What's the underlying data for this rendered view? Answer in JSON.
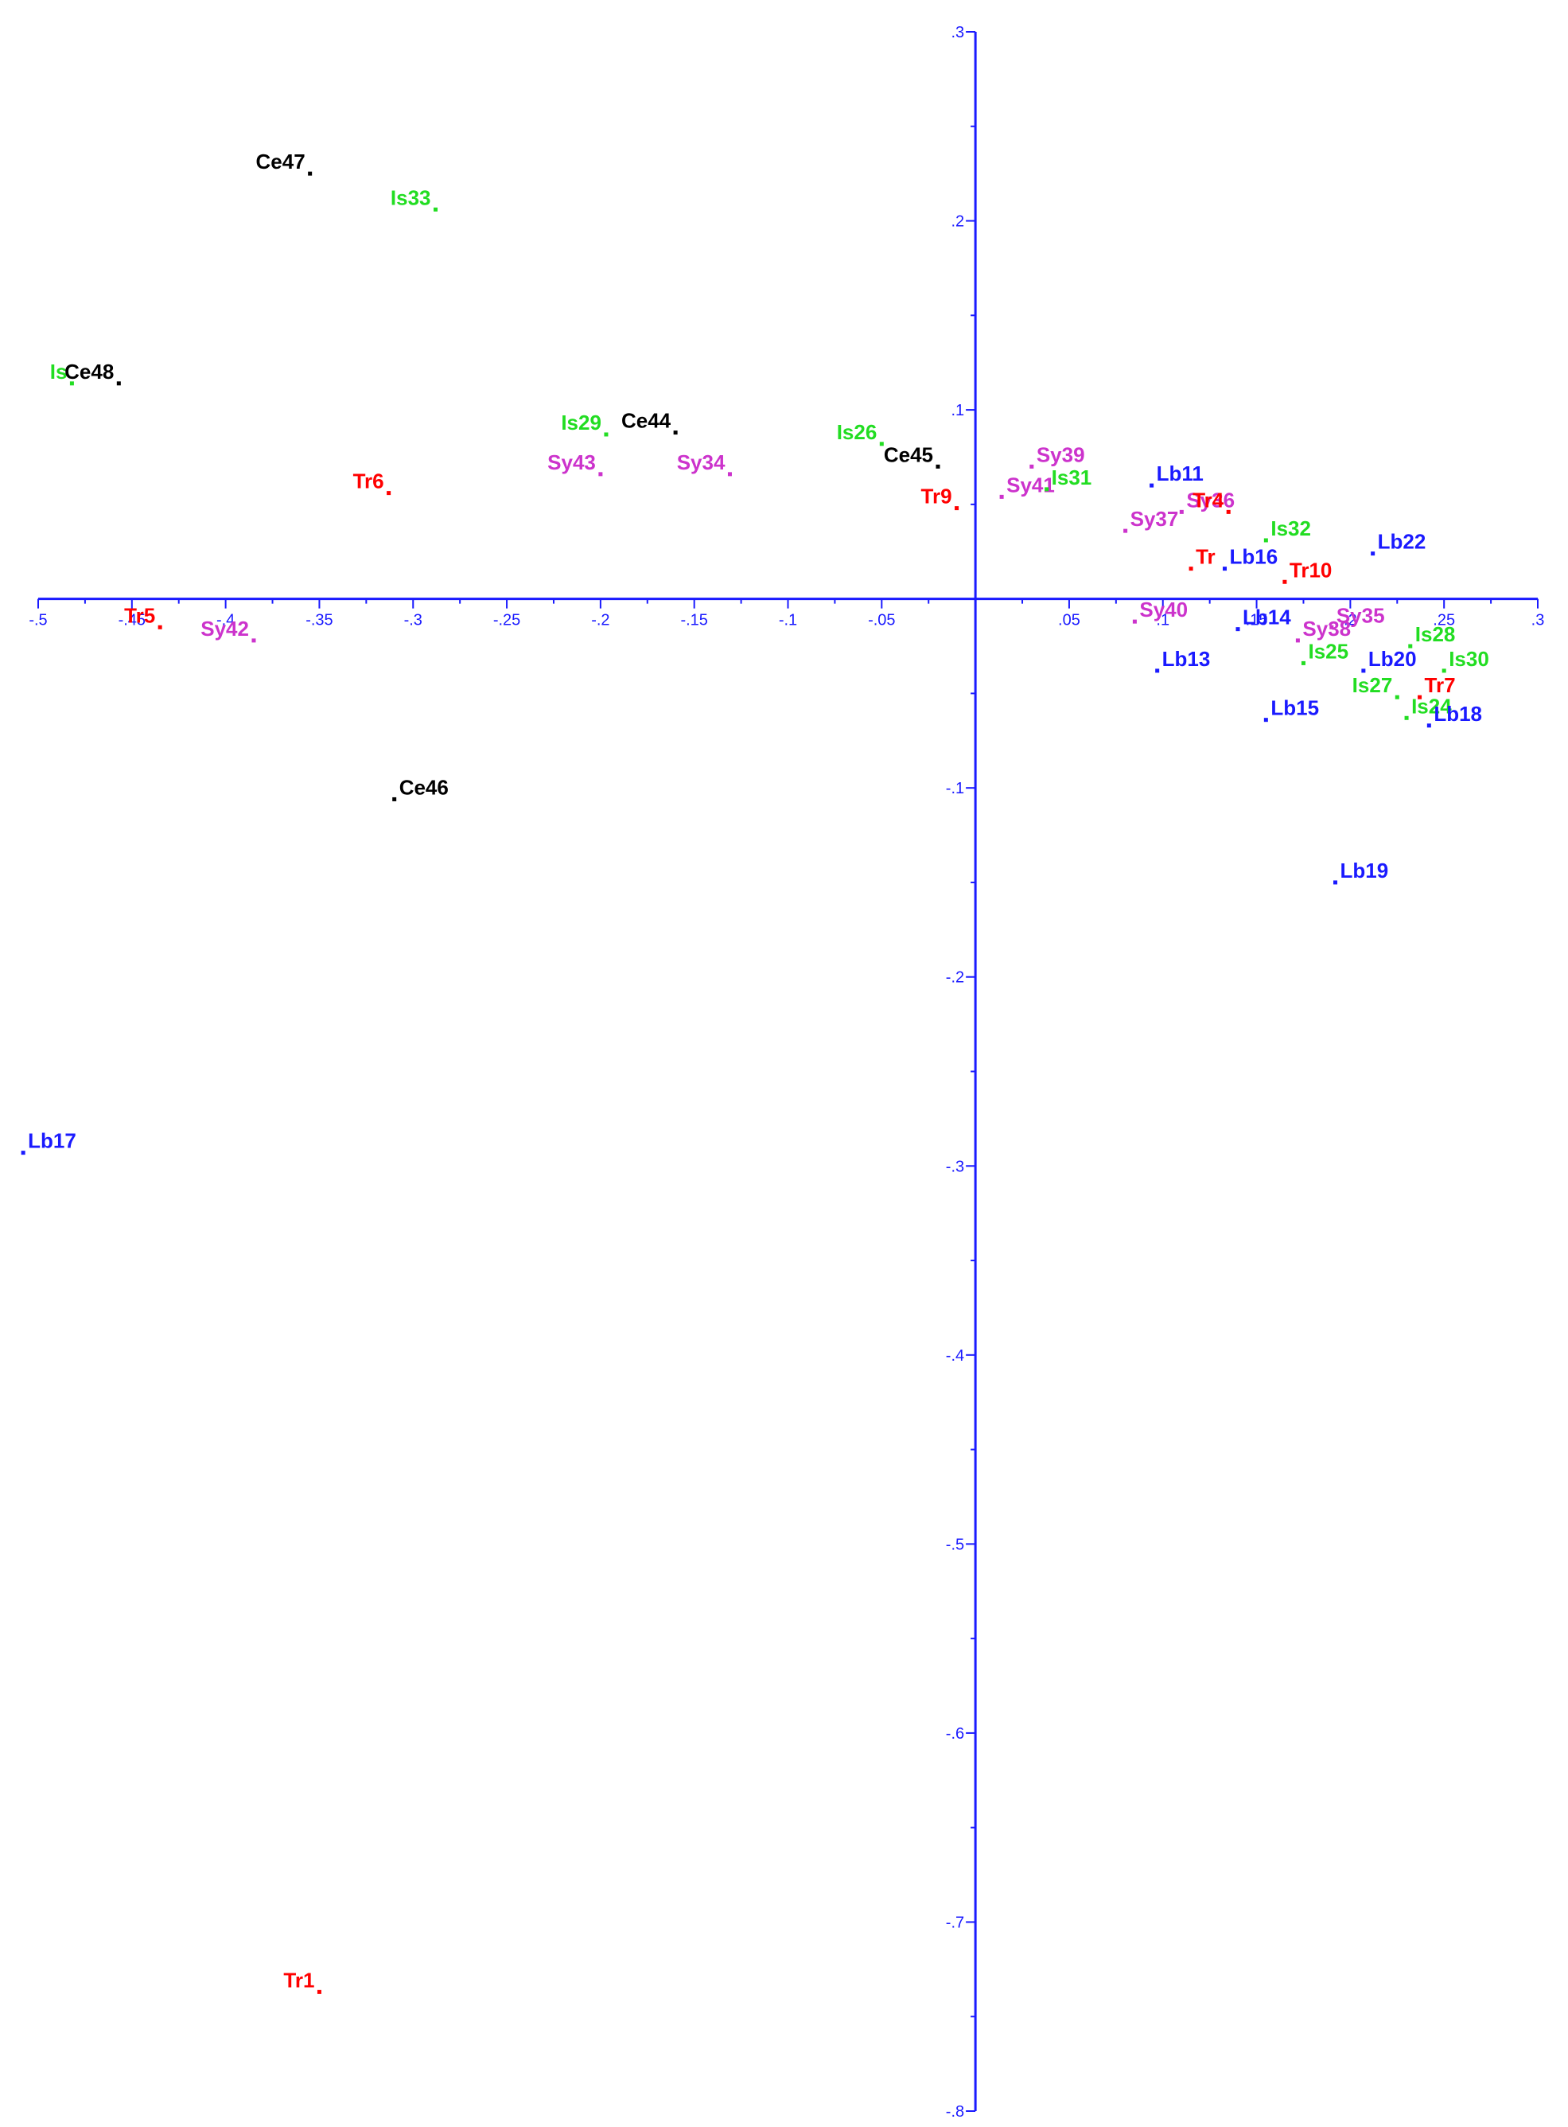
{
  "chart_data": {
    "type": "scatter",
    "title": "",
    "xlabel": "",
    "ylabel": "",
    "xlim": [
      -0.5,
      0.3
    ],
    "ylim": [
      -0.8,
      0.3
    ],
    "x_ticks": [
      {
        "value": -0.5,
        "label": "-.5"
      },
      {
        "value": -0.45,
        "label": "-.45"
      },
      {
        "value": -0.4,
        "label": "-.4"
      },
      {
        "value": -0.35,
        "label": "-.35"
      },
      {
        "value": -0.3,
        "label": "-.3"
      },
      {
        "value": -0.25,
        "label": "-.25"
      },
      {
        "value": -0.2,
        "label": "-.2"
      },
      {
        "value": -0.15,
        "label": "-.15"
      },
      {
        "value": -0.1,
        "label": "-.1"
      },
      {
        "value": -0.05,
        "label": "-.05"
      },
      {
        "value": 0.05,
        "label": ".05"
      },
      {
        "value": 0.1,
        "label": ".1"
      },
      {
        "value": 0.15,
        "label": ".15"
      },
      {
        "value": 0.2,
        "label": ".2"
      },
      {
        "value": 0.25,
        "label": ".25"
      },
      {
        "value": 0.3,
        "label": ".3"
      }
    ],
    "y_ticks": [
      {
        "value": 0.3,
        "label": ".3"
      },
      {
        "value": 0.2,
        "label": ".2"
      },
      {
        "value": 0.1,
        "label": ".1"
      },
      {
        "value": -0.1,
        "label": "-.1"
      },
      {
        "value": -0.2,
        "label": "-.2"
      },
      {
        "value": -0.3,
        "label": "-.3"
      },
      {
        "value": -0.4,
        "label": "-.4"
      },
      {
        "value": -0.5,
        "label": "-.5"
      },
      {
        "value": -0.6,
        "label": "-.6"
      },
      {
        "value": -0.7,
        "label": "-.7"
      },
      {
        "value": -0.8,
        "label": "-.8"
      }
    ],
    "grid": false,
    "legend": "none",
    "colors": {
      "axis": "#1a1aff",
      "Ce": "#000000",
      "Is": "#22dd22",
      "Tr": "#ff0000",
      "Sy": "#cc33cc",
      "Lb": "#1a1aff"
    },
    "points": [
      {
        "label": "Ce47",
        "group": "Ce",
        "x": -0.355,
        "y": 0.225,
        "label_side": "left"
      },
      {
        "label": "Is33",
        "group": "Is",
        "x": -0.288,
        "y": 0.206,
        "label_side": "left"
      },
      {
        "label": "Is",
        "group": "Is",
        "x": -0.482,
        "y": 0.114,
        "label_side": "left"
      },
      {
        "label": "Ce48",
        "group": "Ce",
        "x": -0.457,
        "y": 0.114,
        "label_side": "left"
      },
      {
        "label": "Tr6",
        "group": "Tr",
        "x": -0.313,
        "y": 0.056,
        "label_side": "left"
      },
      {
        "label": "Is29",
        "group": "Is",
        "x": -0.197,
        "y": 0.087,
        "label_side": "left"
      },
      {
        "label": "Ce44",
        "group": "Ce",
        "x": -0.16,
        "y": 0.088,
        "label_side": "left"
      },
      {
        "label": "Sy43",
        "group": "Sy",
        "x": -0.2,
        "y": 0.066,
        "label_side": "left"
      },
      {
        "label": "Sy34",
        "group": "Sy",
        "x": -0.131,
        "y": 0.066,
        "label_side": "left"
      },
      {
        "label": "Is26",
        "group": "Is",
        "x": -0.05,
        "y": 0.082,
        "label_side": "left"
      },
      {
        "label": "Ce45",
        "group": "Ce",
        "x": -0.02,
        "y": 0.07,
        "label_side": "left"
      },
      {
        "label": "Tr9",
        "group": "Tr",
        "x": -0.01,
        "y": 0.048,
        "label_side": "left"
      },
      {
        "label": "Sy39",
        "group": "Sy",
        "x": 0.03,
        "y": 0.07,
        "label_side": "right"
      },
      {
        "label": "Sy41",
        "group": "Sy",
        "x": 0.014,
        "y": 0.054,
        "label_side": "right"
      },
      {
        "label": "Is31",
        "group": "Is",
        "x": 0.038,
        "y": 0.058,
        "label_side": "right"
      },
      {
        "label": "Lb11",
        "group": "Lb",
        "x": 0.094,
        "y": 0.06,
        "label_side": "right"
      },
      {
        "label": "Sy37",
        "group": "Sy",
        "x": 0.08,
        "y": 0.036,
        "label_side": "right"
      },
      {
        "label": "Sy36",
        "group": "Sy",
        "x": 0.11,
        "y": 0.046,
        "label_side": "right"
      },
      {
        "label": "Tr4",
        "group": "Tr",
        "x": 0.135,
        "y": 0.046,
        "label_side": "left"
      },
      {
        "label": "Is32",
        "group": "Is",
        "x": 0.155,
        "y": 0.031,
        "label_side": "right"
      },
      {
        "label": "Tr",
        "group": "Tr",
        "x": 0.115,
        "y": 0.016,
        "label_side": "right"
      },
      {
        "label": "Lb16",
        "group": "Lb",
        "x": 0.133,
        "y": 0.016,
        "label_side": "right"
      },
      {
        "label": "Tr10",
        "group": "Tr",
        "x": 0.165,
        "y": 0.009,
        "label_side": "right"
      },
      {
        "label": "Lb22",
        "group": "Lb",
        "x": 0.212,
        "y": 0.024,
        "label_side": "right"
      },
      {
        "label": "Tr5",
        "group": "Tr",
        "x": -0.435,
        "y": -0.015,
        "label_side": "left"
      },
      {
        "label": "Sy42",
        "group": "Sy",
        "x": -0.385,
        "y": -0.022,
        "label_side": "left"
      },
      {
        "label": "Sy40",
        "group": "Sy",
        "x": 0.085,
        "y": -0.012,
        "label_side": "right"
      },
      {
        "label": "Lb14",
        "group": "Lb",
        "x": 0.14,
        "y": -0.016,
        "label_side": "right"
      },
      {
        "label": "Sy38",
        "group": "Sy",
        "x": 0.172,
        "y": -0.022,
        "label_side": "right"
      },
      {
        "label": "Is25",
        "group": "Is",
        "x": 0.175,
        "y": -0.034,
        "label_side": "right"
      },
      {
        "label": "Sy35",
        "group": "Sy",
        "x": 0.19,
        "y": -0.015,
        "label_side": "right"
      },
      {
        "label": "Is28",
        "group": "Is",
        "x": 0.232,
        "y": -0.025,
        "label_side": "right"
      },
      {
        "label": "Lb20",
        "group": "Lb",
        "x": 0.207,
        "y": -0.038,
        "label_side": "right"
      },
      {
        "label": "Is27",
        "group": "Is",
        "x": 0.225,
        "y": -0.052,
        "label_side": "left"
      },
      {
        "label": "Is30",
        "group": "Is",
        "x": 0.25,
        "y": -0.038,
        "label_side": "right"
      },
      {
        "label": "Tr7",
        "group": "Tr",
        "x": 0.237,
        "y": -0.052,
        "label_side": "right"
      },
      {
        "label": "Is24",
        "group": "Is",
        "x": 0.23,
        "y": -0.063,
        "label_side": "right"
      },
      {
        "label": "Lb18",
        "group": "Lb",
        "x": 0.242,
        "y": -0.067,
        "label_side": "right"
      },
      {
        "label": "Lb13",
        "group": "Lb",
        "x": 0.097,
        "y": -0.038,
        "label_side": "right"
      },
      {
        "label": "Lb15",
        "group": "Lb",
        "x": 0.155,
        "y": -0.064,
        "label_side": "right"
      },
      {
        "label": "Ce46",
        "group": "Ce",
        "x": -0.31,
        "y": -0.106,
        "label_side": "right"
      },
      {
        "label": "Lb19",
        "group": "Lb",
        "x": 0.192,
        "y": -0.15,
        "label_side": "right"
      },
      {
        "label": "Lb17",
        "group": "Lb",
        "x": -0.508,
        "y": -0.293,
        "label_side": "right"
      },
      {
        "label": "Tr1",
        "group": "Tr",
        "x": -0.35,
        "y": -0.737,
        "label_side": "left"
      }
    ]
  }
}
